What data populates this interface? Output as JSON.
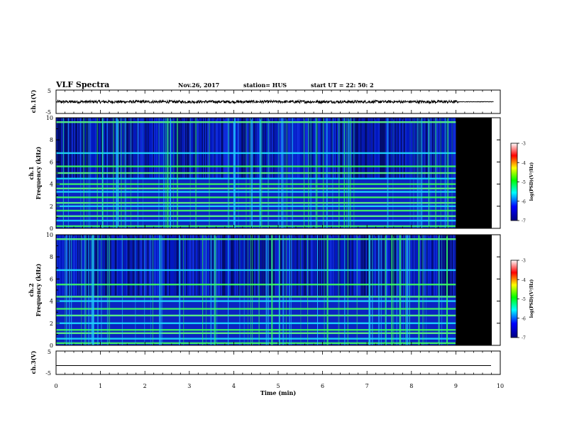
{
  "header": {
    "title": "VLF Spectra",
    "date": "Nov.26, 2017",
    "station": "station= HUS",
    "start_ut": "start  UT =   22: 50: 2"
  },
  "chart_data": [
    {
      "type": "line",
      "name": "ch1-waveform",
      "ylabel": "ch.1(V)",
      "ylim": [
        -5,
        5
      ],
      "yticklabels": [
        "5",
        "-5"
      ],
      "xlim": [
        0,
        10
      ],
      "signal_end_min": 9.85,
      "approx_amplitude": 0.6
    },
    {
      "type": "heatmap",
      "name": "ch1-spectrogram",
      "ylabel_line1": "ch.1",
      "ylabel_line2": "Frequency  (kHz)",
      "ylim": [
        0,
        10
      ],
      "yticklabels": [
        "0",
        "2",
        "4",
        "6",
        "8",
        "10"
      ],
      "xlim": [
        0,
        10
      ],
      "data_end_min": 9.0,
      "blank_after_min": 9.0,
      "persistent_lines_khz": [
        0.2,
        0.7,
        1.1,
        1.6,
        2.0,
        2.3,
        2.8,
        3.3,
        3.6,
        4.0,
        4.5,
        5.0,
        5.6,
        6.8,
        9.6
      ],
      "colorbar": {
        "label": "log(PSD)(V²/Hz)",
        "min": -7,
        "max": -3,
        "ticklabels": [
          "-3",
          "-4",
          "-5",
          "-6",
          "-7"
        ],
        "colors": [
          "#ffffff",
          "#ff0000",
          "#ffff00",
          "#00ff00",
          "#00ffff",
          "#0000ff",
          "#000080"
        ]
      }
    },
    {
      "type": "heatmap",
      "name": "ch2-spectrogram",
      "ylabel_line1": "ch.2",
      "ylabel_line2": "Frequency  (kHz)",
      "ylim": [
        0,
        10
      ],
      "yticklabels": [
        "0",
        "2",
        "4",
        "6",
        "8",
        "10"
      ],
      "xlim": [
        0,
        10
      ],
      "data_end_min": 9.0,
      "blank_after_min": 9.0,
      "persistent_lines_khz": [
        0.2,
        0.6,
        1.1,
        1.4,
        2.0,
        2.7,
        3.3,
        4.0,
        4.4,
        5.5,
        6.8,
        9.6
      ],
      "colorbar": {
        "label": "log(PSD)(V²/Hz)",
        "min": -7,
        "max": -3,
        "ticklabels": [
          "-3",
          "-4",
          "-5",
          "-6",
          "-7"
        ],
        "colors": [
          "#ffffff",
          "#ff0000",
          "#ffff00",
          "#00ff00",
          "#00ffff",
          "#0000ff",
          "#000080"
        ]
      }
    },
    {
      "type": "line",
      "name": "ch3-waveform",
      "ylabel": "ch.3(V)",
      "ylim": [
        -5,
        5
      ],
      "yticklabels": [
        "5",
        "-5"
      ],
      "xlim": [
        0,
        10
      ],
      "constant_value": -1.2,
      "xlabel": "Time  (min)",
      "xticklabels": [
        "0",
        "1",
        "2",
        "3",
        "4",
        "5",
        "6",
        "7",
        "8",
        "9",
        "10"
      ]
    }
  ]
}
